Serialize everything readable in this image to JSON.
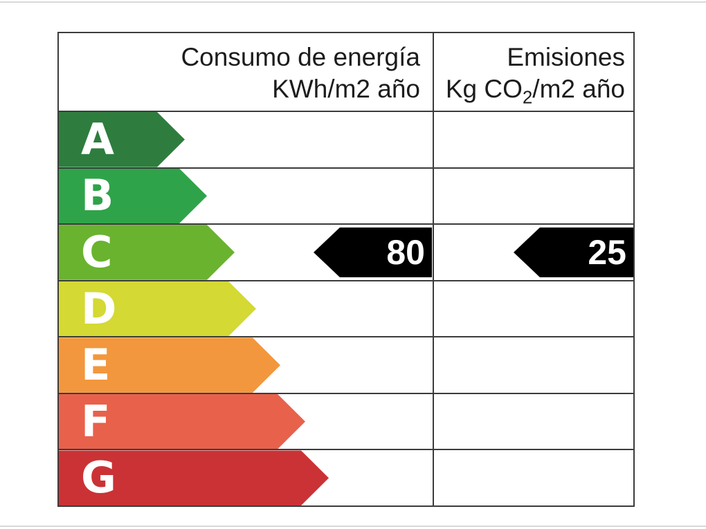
{
  "header": {
    "consumption": {
      "line1": "Consumo de energía",
      "line2": "KWh/m2 año"
    },
    "emissions": {
      "line1": "Emisiones",
      "line2_prefix": "Kg CO",
      "line2_sub": "2",
      "line2_suffix": "/m2 año"
    }
  },
  "ratings": [
    {
      "letter": "A",
      "color": "#2e7d3e",
      "bar_length": 182
    },
    {
      "letter": "B",
      "color": "#2fa34a",
      "bar_length": 214
    },
    {
      "letter": "C",
      "color": "#69b32f",
      "bar_length": 254
    },
    {
      "letter": "D",
      "color": "#d4d933",
      "bar_length": 285
    },
    {
      "letter": "E",
      "color": "#f2973d",
      "bar_length": 320
    },
    {
      "letter": "F",
      "color": "#e8614b",
      "bar_length": 356
    },
    {
      "letter": "G",
      "color": "#cb3235",
      "bar_length": 390
    }
  ],
  "indicators": [
    {
      "column": "consumption",
      "rating": "C",
      "value": "80"
    },
    {
      "column": "emissions",
      "rating": "C",
      "value": "25"
    }
  ],
  "colors": {
    "table_border": "#3b3b3b",
    "indicator_background": "#000000",
    "indicator_text": "#ffffff",
    "letter_text": "#ffffff",
    "header_text": "#1c1c1c"
  },
  "chart_data": {
    "type": "bar",
    "orientation": "horizontal",
    "title": "Energy efficiency rating label",
    "categories": [
      "A",
      "B",
      "C",
      "D",
      "E",
      "F",
      "G"
    ],
    "bar_colors": [
      "#2e7d3e",
      "#2fa34a",
      "#69b32f",
      "#d4d933",
      "#f2973d",
      "#e8614b",
      "#cb3235"
    ],
    "relative_bar_lengths": [
      182,
      214,
      254,
      285,
      320,
      356,
      390
    ],
    "columns": [
      "Consumo de energía KWh/m2 año",
      "Emisiones Kg CO2/m2 año"
    ],
    "rated_class": "C",
    "values": {
      "consumo_kwh_m2_ano": 80,
      "emisiones_kg_co2_m2_ano": 25
    },
    "legend": "none",
    "grid": "table lines"
  }
}
